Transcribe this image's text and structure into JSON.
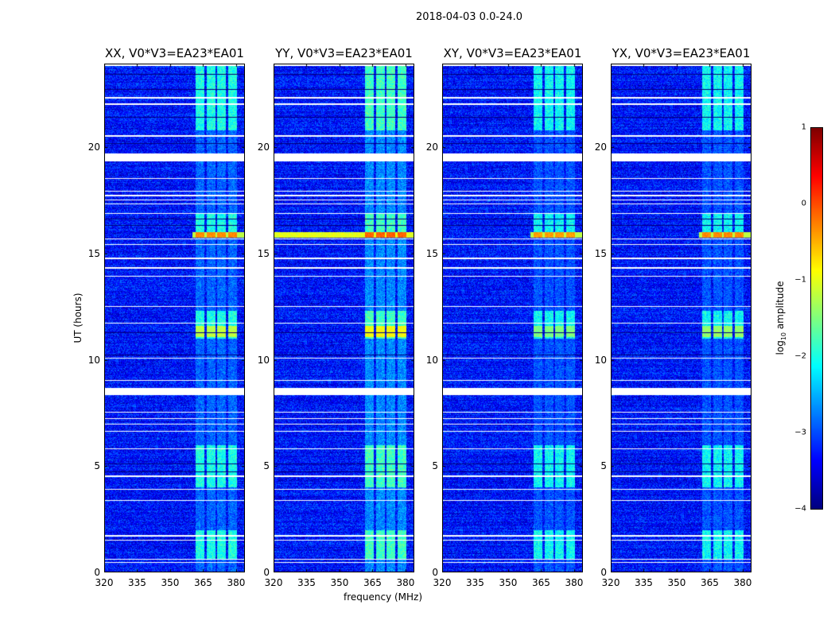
{
  "chart_data": {
    "type": "heatmap",
    "title": "2018-04-03 0.0-24.0",
    "xlabel": "frequency (MHz)",
    "ylabel": "UT (hours)",
    "xlim": [
      320,
      384
    ],
    "ylim": [
      0,
      24
    ],
    "xticks": [
      "320",
      "335",
      "350",
      "365",
      "380"
    ],
    "yticks": [
      "0",
      "5",
      "10",
      "15",
      "20"
    ],
    "colormap": "jet",
    "colorbar": {
      "label_pre": "log",
      "label_sub": "10",
      "label_post": " amplitude",
      "range": [
        -4,
        1
      ],
      "ticks": [
        "1",
        "0",
        "−1",
        "−2",
        "−3",
        "−4"
      ]
    },
    "panels": [
      {
        "title": "XX, V0*V3=EA23*EA01",
        "rfi_level": -2.3,
        "event_level_16h": -0.3,
        "event_level_11h": -1.2,
        "wide_16h": false
      },
      {
        "title": "YY, V0*V3=EA23*EA01",
        "rfi_level": -2.1,
        "event_level_16h": -0.1,
        "event_level_11h": -0.9,
        "wide_16h": true
      },
      {
        "title": "XY, V0*V3=EA23*EA01",
        "rfi_level": -2.4,
        "event_level_16h": -0.4,
        "event_level_11h": -1.5,
        "wide_16h": false
      },
      {
        "title": "YX, V0*V3=EA23*EA01",
        "rfi_level": -2.4,
        "event_level_16h": -0.3,
        "event_level_11h": -1.4,
        "wide_16h": false
      }
    ],
    "background_level": -3.3,
    "rfi_subbands_mhz": [
      [
        361.5,
        365.5
      ],
      [
        366.5,
        370.5
      ],
      [
        371.5,
        375.5
      ],
      [
        376.5,
        380.5
      ]
    ],
    "flagged_gaps_hours": [
      [
        19.33,
        19.72
      ],
      [
        8.34,
        8.66
      ],
      [
        14.72,
        14.82
      ],
      [
        23.8,
        23.93
      ],
      [
        22.3,
        22.36
      ],
      [
        22.0,
        22.06
      ],
      [
        20.5,
        20.55
      ],
      [
        18.5,
        18.55
      ],
      [
        17.9,
        17.95
      ],
      [
        17.7,
        17.75
      ],
      [
        17.5,
        17.55
      ],
      [
        17.3,
        17.35
      ],
      [
        16.85,
        16.9
      ],
      [
        15.65,
        15.72
      ],
      [
        15.4,
        15.45
      ],
      [
        14.3,
        14.34
      ],
      [
        13.9,
        13.94
      ],
      [
        12.5,
        12.54
      ],
      [
        11.7,
        11.74
      ],
      [
        10.05,
        10.1
      ],
      [
        9.0,
        9.04
      ],
      [
        7.5,
        7.55
      ],
      [
        7.2,
        7.24
      ],
      [
        6.95,
        6.99
      ],
      [
        6.6,
        6.64
      ],
      [
        5.8,
        5.84
      ],
      [
        4.5,
        4.55
      ],
      [
        3.9,
        3.94
      ],
      [
        3.35,
        3.4
      ],
      [
        1.7,
        1.74
      ],
      [
        1.5,
        1.55
      ],
      [
        0.6,
        0.65
      ],
      [
        0.45,
        0.5
      ]
    ],
    "dark_lines_hours": [
      [
        23.4,
        23.45
      ],
      [
        22.7,
        22.74
      ],
      [
        21.4,
        21.44
      ],
      [
        20.15,
        20.2
      ],
      [
        16.6,
        16.64
      ],
      [
        16.3,
        16.34
      ],
      [
        11.25,
        11.3
      ],
      [
        10.2,
        10.25
      ],
      [
        5.1,
        5.14
      ],
      [
        4.7,
        4.74
      ]
    ],
    "rfi_active_hours": [
      [
        20.8,
        23.8
      ],
      [
        15.8,
        16.9
      ],
      [
        11.0,
        12.3
      ],
      [
        4.0,
        6.0
      ],
      [
        0.6,
        2.0
      ]
    ]
  }
}
